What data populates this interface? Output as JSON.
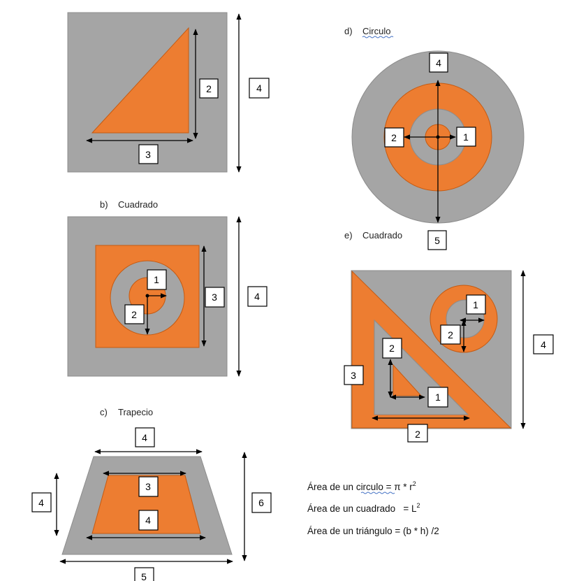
{
  "colors": {
    "gray": "#a5a5a5",
    "orange": "#ed7d31",
    "orange_edge": "#c55a11",
    "gray_edge": "#8c8c8c"
  },
  "panel_a": {
    "labels": [
      "2",
      "4",
      "3"
    ]
  },
  "panel_b": {
    "caption_letter": "b)",
    "caption_text": "Cuadrado",
    "labels": [
      "1",
      "3",
      "4",
      "2"
    ]
  },
  "panel_c": {
    "caption_letter": "c)",
    "caption_text": "Trapecio",
    "labels": [
      "4",
      "3",
      "4",
      "6",
      "4",
      "5"
    ]
  },
  "panel_d": {
    "caption_letter": "d)",
    "caption_text": "Circulo",
    "labels": [
      "4",
      "2",
      "1",
      "5"
    ]
  },
  "panel_e": {
    "caption_letter": "e)",
    "caption_text": "Cuadrado",
    "labels": [
      "1",
      "2",
      "4",
      "2",
      "3",
      "1",
      "2"
    ]
  },
  "formulas": {
    "circle_prefix": "Área de un ",
    "circle_word": "circulo",
    "circle_rest": " = π * r",
    "circle_exp": "2",
    "square_text": "Área de un cuadrado   = L",
    "square_exp": "2",
    "triangle_text": "Área de un triángulo = (b * h) /2"
  }
}
